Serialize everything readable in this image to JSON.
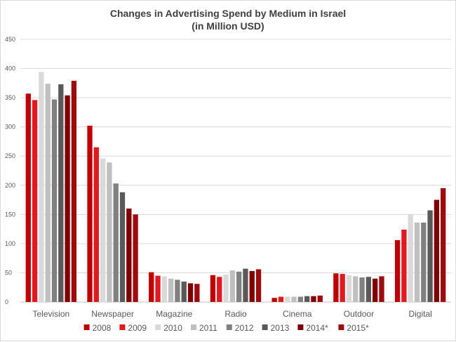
{
  "chart_data": {
    "type": "bar",
    "title": "Changes in Advertising Spend by Medium in Israel",
    "subtitle": "(in Million USD)",
    "categories": [
      "Television",
      "Newspaper",
      "Magazine",
      "Radio",
      "Cinema",
      "Outdoor",
      "Digital"
    ],
    "ylim": [
      0,
      450
    ],
    "yticks": [
      0,
      50,
      100,
      150,
      200,
      250,
      300,
      350,
      400,
      450
    ],
    "grid": true,
    "legend_position": "bottom",
    "series": [
      {
        "name": "2008",
        "color": "#c00000",
        "values": [
          357,
          302,
          51,
          46,
          7,
          49,
          106
        ]
      },
      {
        "name": "2009",
        "color": "#e4181f",
        "values": [
          346,
          265,
          45,
          43,
          9,
          48,
          124
        ]
      },
      {
        "name": "2010",
        "color": "#d9d9d9",
        "values": [
          394,
          246,
          44,
          47,
          9,
          46,
          150
        ]
      },
      {
        "name": "2011",
        "color": "#bfbfbf",
        "values": [
          374,
          239,
          40,
          54,
          9,
          44,
          136
        ]
      },
      {
        "name": "2012",
        "color": "#808080",
        "values": [
          347,
          203,
          38,
          52,
          9,
          42,
          136
        ]
      },
      {
        "name": "2013",
        "color": "#595959",
        "values": [
          373,
          188,
          35,
          57,
          10,
          43,
          157
        ]
      },
      {
        "name": "2014*",
        "color": "#7f0000",
        "values": [
          354,
          160,
          32,
          53,
          10,
          40,
          175
        ]
      },
      {
        "name": "2015*",
        "color": "#9e0b0f",
        "values": [
          379,
          150,
          31,
          56,
          11,
          44,
          195
        ]
      }
    ]
  }
}
